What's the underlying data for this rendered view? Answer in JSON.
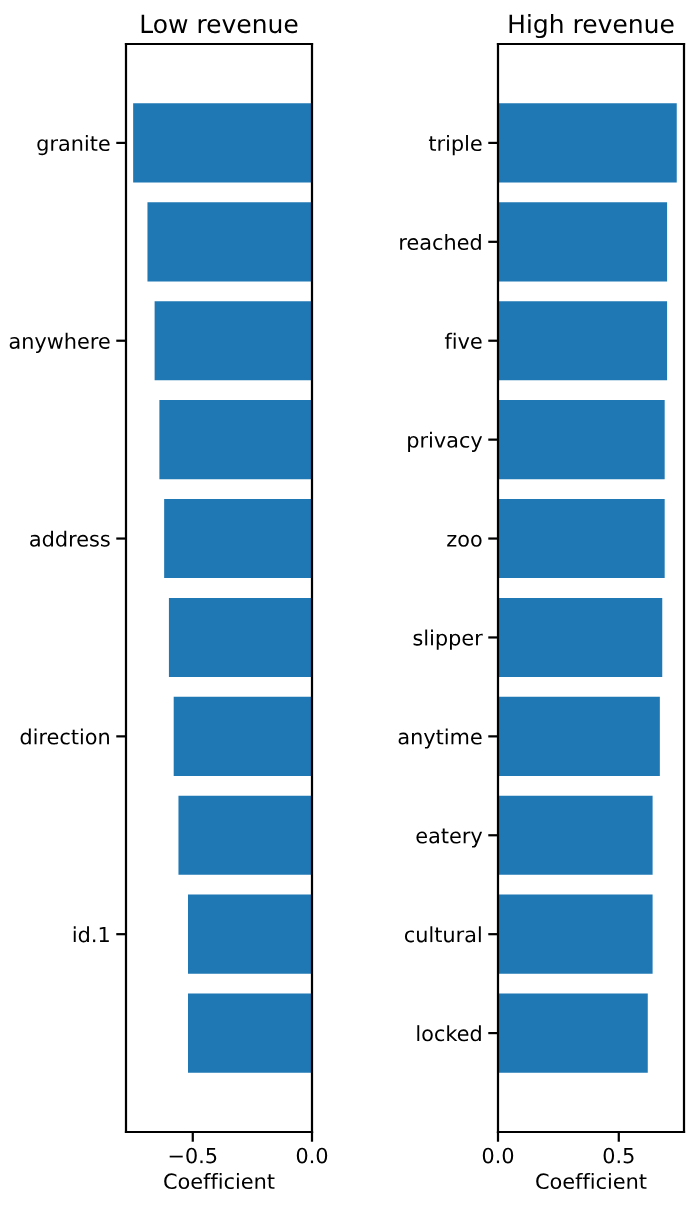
{
  "chart_data": [
    {
      "type": "bar",
      "orientation": "horizontal",
      "title": "Low revenue",
      "xlabel": "Coefficient",
      "categories": [
        "granite",
        null,
        "anywhere",
        null,
        "address",
        null,
        "direction",
        null,
        "id.1",
        null
      ],
      "values": [
        -0.75,
        -0.69,
        -0.66,
        -0.64,
        -0.62,
        -0.6,
        -0.58,
        -0.56,
        -0.52,
        -0.52
      ],
      "color": "#1f77b4",
      "xlim": [
        -0.78,
        0.0
      ],
      "xticks": [
        {
          "value": -0.5,
          "label": "−0.5"
        },
        {
          "value": 0.0,
          "label": "0.0"
        }
      ],
      "grid": false,
      "legend": false
    },
    {
      "type": "bar",
      "orientation": "horizontal",
      "title": "High revenue",
      "xlabel": "Coefficient",
      "categories": [
        "triple",
        "reached",
        "five",
        "privacy",
        "zoo",
        "slipper",
        "anytime",
        "eatery",
        "cultural",
        "locked"
      ],
      "values": [
        0.74,
        0.7,
        0.7,
        0.69,
        0.69,
        0.68,
        0.67,
        0.64,
        0.64,
        0.62
      ],
      "color": "#1f77b4",
      "xlim": [
        0.0,
        0.77
      ],
      "xticks": [
        {
          "value": 0.0,
          "label": "0.0"
        },
        {
          "value": 0.5,
          "label": "0.5"
        }
      ],
      "grid": false,
      "legend": false
    }
  ]
}
